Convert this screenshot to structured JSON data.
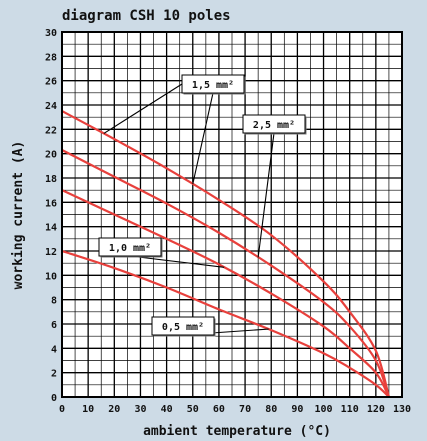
{
  "chart_data": {
    "type": "line",
    "title": "diagram CSH 10 poles",
    "xlabel": "ambient temperature (°C)",
    "ylabel": "working current (A)",
    "xlim": [
      0,
      130
    ],
    "ylim": [
      0,
      30
    ],
    "x_ticks": [
      0,
      10,
      20,
      30,
      40,
      50,
      60,
      70,
      80,
      90,
      100,
      110,
      120,
      130
    ],
    "y_ticks": [
      0,
      2,
      4,
      6,
      8,
      10,
      12,
      14,
      16,
      18,
      20,
      22,
      24,
      26,
      28,
      30
    ],
    "grid": true,
    "line_color": "#e8403c",
    "series": [
      {
        "name": "0,5 mm²",
        "x": [
          0,
          20,
          40,
          60,
          80,
          100,
          110,
          120,
          125
        ],
        "y": [
          12.0,
          10.6,
          9.0,
          7.2,
          5.5,
          3.6,
          2.4,
          1.0,
          0
        ]
      },
      {
        "name": "1,0 mm²",
        "x": [
          0,
          20,
          40,
          60,
          80,
          100,
          110,
          120,
          125
        ],
        "y": [
          17.0,
          15.0,
          13.0,
          10.9,
          8.5,
          5.8,
          4.0,
          2.0,
          0
        ]
      },
      {
        "name": "2,5 mm²",
        "x": [
          0,
          20,
          40,
          60,
          80,
          100,
          110,
          120,
          125
        ],
        "y": [
          20.3,
          18.1,
          15.9,
          13.5,
          10.8,
          7.8,
          5.8,
          3.0,
          0
        ]
      },
      {
        "name": "1,5 mm²",
        "x": [
          0,
          20,
          40,
          60,
          80,
          100,
          110,
          120,
          125
        ],
        "y": [
          23.5,
          21.2,
          18.8,
          16.2,
          13.3,
          9.5,
          7.0,
          3.8,
          0
        ]
      }
    ],
    "annotations": [
      {
        "label": "1,5 mm²",
        "target_series": "1,5 mm²"
      },
      {
        "label": "2,5 mm²",
        "target_series": "2,5 mm²"
      },
      {
        "label": "1,0 mm²",
        "target_series": "1,0 mm²"
      },
      {
        "label": "0,5 mm²",
        "target_series": "0,5 mm²"
      }
    ]
  }
}
